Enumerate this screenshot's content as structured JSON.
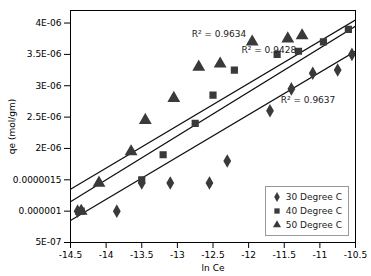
{
  "chart_data": {
    "type": "scatter",
    "xlabel": "ln Ce",
    "ylabel": "qe (mol/gm)",
    "xlim": [
      -14.5,
      -10.5
    ],
    "ylim": [
      5e-07,
      4.2e-06
    ],
    "xticks": [
      -14.5,
      -14,
      -13.5,
      -13,
      -12.5,
      -12,
      -11.5,
      -11,
      -10.5
    ],
    "yticks": [
      {
        "value": 5e-07,
        "label": "5E-07"
      },
      {
        "value": 1e-06,
        "label": "0.000001"
      },
      {
        "value": 1.5e-06,
        "label": "0.0000015"
      },
      {
        "value": 2e-06,
        "label": "2E-06"
      },
      {
        "value": 2.5e-06,
        "label": "2.5E-06"
      },
      {
        "value": 3e-06,
        "label": "3E-06"
      },
      {
        "value": 3.5e-06,
        "label": "3.5E-06"
      },
      {
        "value": 4e-06,
        "label": "4E-06"
      }
    ],
    "grid": false,
    "legend": "lower right",
    "series": [
      {
        "name": "30 Degree C",
        "type": "scatter",
        "marker": "diamond",
        "color": "#3a3a3a",
        "x": [
          -14.4,
          -13.85,
          -13.5,
          -13.1,
          -12.55,
          -12.3,
          -11.7,
          -11.4,
          -11.1,
          -10.75,
          -10.55
        ],
        "values": [
          1e-06,
          1e-06,
          1.45e-06,
          1.45e-06,
          1.45e-06,
          1.8e-06,
          2.6e-06,
          2.95e-06,
          3.2e-06,
          3.25e-06,
          3.5e-06
        ]
      },
      {
        "name": "40 Degree C",
        "type": "scatter",
        "marker": "square",
        "color": "#3a3a3a",
        "x": [
          -14.35,
          -13.5,
          -13.2,
          -12.75,
          -12.5,
          -12.2,
          -11.6,
          -11.3,
          -10.95,
          -10.6
        ],
        "values": [
          1e-06,
          1.5e-06,
          1.9e-06,
          2.4e-06,
          2.85e-06,
          3.25e-06,
          3.5e-06,
          3.55e-06,
          3.7e-06,
          3.9e-06
        ]
      },
      {
        "name": "50 Degree C",
        "type": "scatter",
        "marker": "triangle",
        "color": "#3a3a3a",
        "x": [
          -14.35,
          -14.1,
          -13.65,
          -13.45,
          -13.05,
          -12.7,
          -12.4,
          -11.95,
          -11.45,
          -11.25
        ],
        "values": [
          1e-06,
          1.45e-06,
          1.95e-06,
          2.45e-06,
          2.8e-06,
          3.3e-06,
          3.35e-06,
          3.7e-06,
          3.75e-06,
          3.8e-06
        ]
      },
      {
        "type": "line",
        "color": "#111111",
        "x": [
          -14.5,
          -10.5
        ],
        "values": [
          8.5e-07,
          3.55e-06
        ]
      },
      {
        "type": "line",
        "color": "#111111",
        "x": [
          -14.5,
          -10.5
        ],
        "values": [
          1.15e-06,
          3.95e-06
        ]
      },
      {
        "type": "line",
        "color": "#111111",
        "x": [
          -14.5,
          -10.5
        ],
        "values": [
          1.35e-06,
          4.05e-06
        ]
      }
    ],
    "annotations": [
      {
        "text": "R² = 0.9634",
        "x": -12.8,
        "y": 3.78e-06
      },
      {
        "text": "R² = 0.9428",
        "x": -12.1,
        "y": 3.52e-06
      },
      {
        "text": "R² = 0.9637",
        "x": -11.55,
        "y": 2.72e-06
      }
    ]
  }
}
